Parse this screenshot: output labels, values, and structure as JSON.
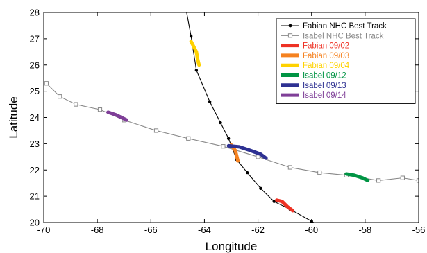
{
  "chart_data": {
    "type": "line",
    "title": "",
    "xlabel": "Longitude",
    "ylabel": "Latitude",
    "xlim": [
      -70,
      -56
    ],
    "ylim": [
      20,
      28
    ],
    "x_ticks": [
      -70,
      -68,
      -66,
      -64,
      -62,
      -60,
      -58,
      -56
    ],
    "y_ticks": [
      20,
      21,
      22,
      23,
      24,
      25,
      26,
      27,
      28
    ],
    "grid": false,
    "legend_position": "top-right",
    "series": [
      {
        "name": "Fabian NHC Best Track",
        "color": "#000000",
        "marker": "circle",
        "points": [
          [
            -64.7,
            28.2
          ],
          [
            -64.5,
            27.1
          ],
          [
            -64.3,
            25.8
          ],
          [
            -63.8,
            24.6
          ],
          [
            -63.4,
            23.8
          ],
          [
            -63.1,
            23.2
          ],
          [
            -62.8,
            22.4
          ],
          [
            -62.4,
            21.9
          ],
          [
            -61.9,
            21.3
          ],
          [
            -61.4,
            20.8
          ],
          [
            -60.8,
            20.5
          ],
          [
            -60.0,
            20.05
          ],
          [
            -59.6,
            19.8
          ]
        ]
      },
      {
        "name": "Isabel NHC Best Track",
        "color": "#888888",
        "marker": "square",
        "points": [
          [
            -70.2,
            25.5
          ],
          [
            -69.9,
            25.3
          ],
          [
            -69.4,
            24.8
          ],
          [
            -68.8,
            24.5
          ],
          [
            -67.9,
            24.3
          ],
          [
            -67.0,
            23.9
          ],
          [
            -65.8,
            23.5
          ],
          [
            -64.6,
            23.2
          ],
          [
            -63.3,
            22.9
          ],
          [
            -62.0,
            22.5
          ],
          [
            -60.8,
            22.1
          ],
          [
            -59.7,
            21.9
          ],
          [
            -58.7,
            21.8
          ],
          [
            -57.5,
            21.6
          ],
          [
            -56.6,
            21.7
          ],
          [
            -56.0,
            21.6
          ]
        ]
      },
      {
        "name": "Fabian 09/02",
        "color": "#ee3224",
        "points": [
          [
            -61.3,
            20.85
          ],
          [
            -61.1,
            20.8
          ],
          [
            -60.9,
            20.6
          ],
          [
            -60.7,
            20.45
          ]
        ]
      },
      {
        "name": "Fabian 09/03",
        "color": "#f58220",
        "points": [
          [
            -63.0,
            22.95
          ],
          [
            -62.85,
            22.75
          ],
          [
            -62.8,
            22.55
          ],
          [
            -62.75,
            22.35
          ]
        ]
      },
      {
        "name": "Fabian 09/04",
        "color": "#ffd200",
        "points": [
          [
            -64.5,
            26.9
          ],
          [
            -64.4,
            26.7
          ],
          [
            -64.3,
            26.5
          ],
          [
            -64.25,
            26.2
          ],
          [
            -64.2,
            26.0
          ]
        ]
      },
      {
        "name": "Isabel 09/12",
        "color": "#009444",
        "points": [
          [
            -58.7,
            21.85
          ],
          [
            -58.4,
            21.8
          ],
          [
            -58.1,
            21.7
          ],
          [
            -57.9,
            21.6
          ]
        ]
      },
      {
        "name": "Isabel 09/13",
        "color": "#2e3192",
        "points": [
          [
            -63.1,
            22.92
          ],
          [
            -62.7,
            22.88
          ],
          [
            -62.3,
            22.75
          ],
          [
            -61.9,
            22.6
          ],
          [
            -61.7,
            22.45
          ]
        ]
      },
      {
        "name": "Isabel 09/14",
        "color": "#7f3f98",
        "points": [
          [
            -67.6,
            24.2
          ],
          [
            -67.3,
            24.1
          ],
          [
            -67.1,
            24.0
          ],
          [
            -66.9,
            23.9
          ]
        ]
      }
    ]
  }
}
